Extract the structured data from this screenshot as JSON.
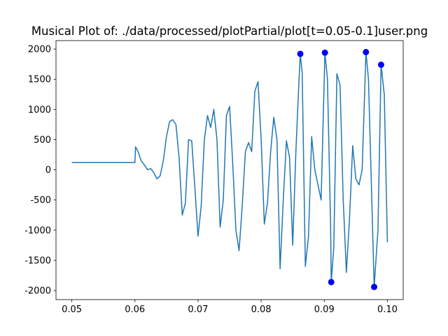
{
  "chart_data": {
    "type": "line",
    "title": "Musical Plot of: ./data/processed/plotPartial/plot[t=0.05-0.1]user.png",
    "xlim": [
      0.0475,
      0.1025
    ],
    "ylim": [
      -2150,
      2140
    ],
    "xticks": [
      0.05,
      0.06,
      0.07,
      0.08,
      0.09,
      {
        "value": 0.1,
        "label": "0.10"
      }
    ],
    "yticks": [
      -2000,
      -1500,
      -1000,
      -500,
      0,
      500,
      1000,
      1500,
      2000
    ],
    "series": [
      {
        "type": "line",
        "color": "#1f77b4",
        "x": [
          0.05,
          0.06,
          0.0601,
          0.0605,
          0.061,
          0.0615,
          0.062,
          0.0625,
          0.063,
          0.0635,
          0.064,
          0.0645,
          0.065,
          0.0655,
          0.066,
          0.0665,
          0.067,
          0.0675,
          0.068,
          0.0685,
          0.069,
          0.0695,
          0.07,
          0.0705,
          0.071,
          0.0715,
          0.072,
          0.0725,
          0.073,
          0.0735,
          0.074,
          0.0745,
          0.075,
          0.0755,
          0.076,
          0.0765,
          0.077,
          0.0775,
          0.078,
          0.0785,
          0.079,
          0.0795,
          0.08,
          0.0805,
          0.081,
          0.0815,
          0.082,
          0.0825,
          0.083,
          0.0835,
          0.084,
          0.0845,
          0.085,
          0.0855,
          0.086,
          0.0862,
          0.0865,
          0.087,
          0.0875,
          0.088,
          0.0885,
          0.089,
          0.0895,
          0.0901,
          0.0905,
          0.091,
          0.0911,
          0.0915,
          0.092,
          0.0925,
          0.093,
          0.0935,
          0.094,
          0.0945,
          0.095,
          0.0955,
          0.096,
          0.0966,
          0.097,
          0.0975,
          0.0979,
          0.0985,
          0.099,
          0.0995,
          0.1
        ],
        "values": [
          120,
          120,
          380,
          300,
          150,
          80,
          0,
          20,
          -50,
          -150,
          -100,
          150,
          550,
          800,
          830,
          750,
          200,
          -750,
          -550,
          500,
          480,
          -300,
          -1100,
          -600,
          500,
          900,
          700,
          1000,
          500,
          -950,
          -500,
          900,
          1050,
          100,
          -1000,
          -1340,
          -600,
          300,
          450,
          300,
          1300,
          1460,
          500,
          -900,
          -550,
          300,
          870,
          500,
          -1640,
          -500,
          480,
          200,
          -1250,
          300,
          1500,
          1920,
          1600,
          -1600,
          -1100,
          550,
          0,
          -250,
          -500,
          1940,
          1500,
          -900,
          -1860,
          -1300,
          1590,
          1400,
          -500,
          -1700,
          -800,
          400,
          -150,
          -250,
          0,
          1950,
          1500,
          -400,
          -1940,
          -1000,
          1740,
          1250,
          -1200
        ]
      },
      {
        "type": "scatter",
        "color": "#0000ff",
        "x": [
          0.0862,
          0.0901,
          0.0911,
          0.0966,
          0.0979,
          0.099
        ],
        "values": [
          1920,
          1940,
          -1860,
          1950,
          -1940,
          1740
        ]
      }
    ]
  }
}
